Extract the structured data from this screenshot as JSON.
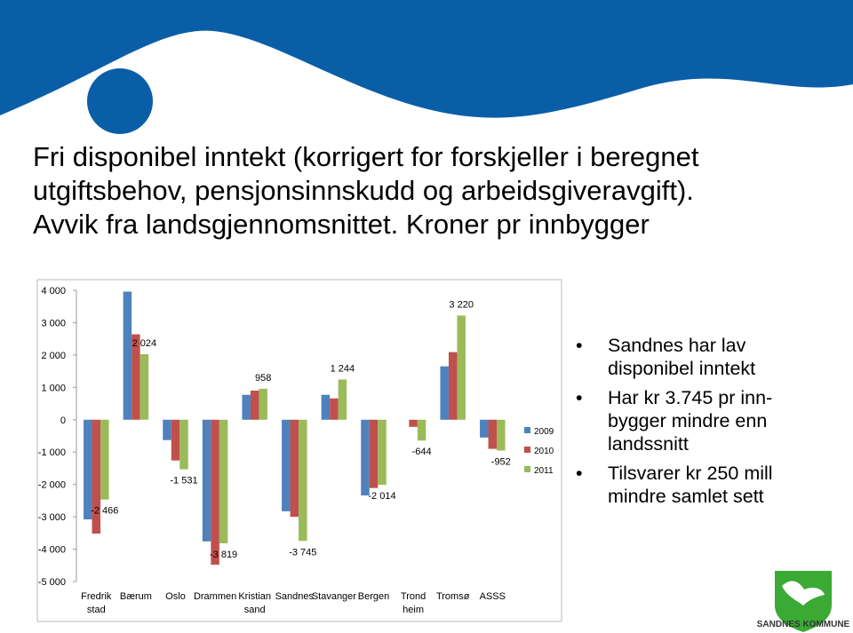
{
  "slide": {
    "title_lines": [
      "Fri disponibel inntekt (korrigert for forskjeller i beregnet",
      "utgiftsbehov, pensjonsinnskudd og arbeidsgiveravgift).",
      "Avvik fra landsgjennomsnittet. Kroner pr innbygger"
    ],
    "bullets": [
      "Sandnes har  lav disponibel inntekt",
      "Har kr 3.745 pr inn-bygger mindre enn landssnitt",
      "Tilsvarer kr 250 mill mindre samlet sett"
    ],
    "logo_text": "SANDNES KOMMUNE"
  },
  "chart_data": {
    "type": "bar",
    "categories": [
      "Fredrik\nstad",
      "Bærum",
      "Oslo",
      "Drammen",
      "Kristian\nsand",
      "Sandnes",
      "Stavanger",
      "Bergen",
      "Trond\nheim",
      "Tromsø",
      "ASSS"
    ],
    "series": [
      {
        "name": "2009",
        "color": "#4f81bd",
        "values": [
          -3080,
          3960,
          -630,
          -3760,
          770,
          -2830,
          770,
          -2340,
          0,
          1650,
          -550
        ]
      },
      {
        "name": "2010",
        "color": "#c0504d",
        "values": [
          -3520,
          2640,
          -1260,
          -4480,
          900,
          -3000,
          660,
          -2110,
          -220,
          2090,
          -900
        ]
      },
      {
        "name": "2011",
        "color": "#9bbb59",
        "values": [
          -2466,
          2024,
          -1531,
          -3819,
          958,
          -3745,
          1244,
          -2014,
          -644,
          3220,
          -952
        ],
        "value_labels": [
          "-2 466",
          "2 024",
          "-1 531",
          "-3 819",
          "958",
          "-3 745",
          "1 244",
          "-2 014",
          "-644",
          "3 220",
          "-952"
        ]
      }
    ],
    "ylim": [
      -5000,
      4000
    ],
    "yticks": [
      {
        "value": -5000,
        "label": "-5 000"
      },
      {
        "value": -4000,
        "label": "-4 000"
      },
      {
        "value": -3000,
        "label": "-3 000"
      },
      {
        "value": -2000,
        "label": "-2 000"
      },
      {
        "value": -1000,
        "label": "-1 000"
      },
      0,
      {
        "value": 1000,
        "label": "1 000"
      },
      {
        "value": 2000,
        "label": "2 000"
      },
      {
        "value": 3000,
        "label": "3 000"
      },
      {
        "value": 4000,
        "label": "4 000"
      }
    ],
    "legend": "right"
  }
}
